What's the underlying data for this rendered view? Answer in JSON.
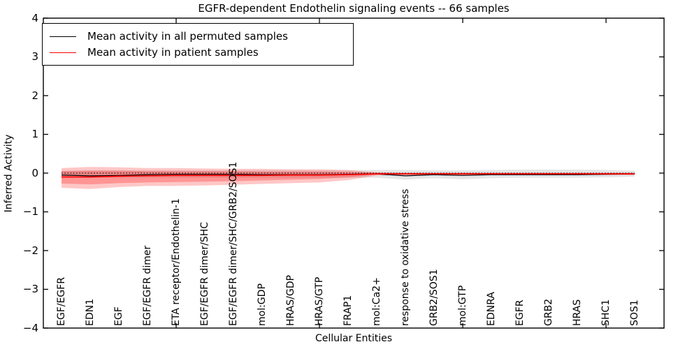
{
  "title": "EGFR-dependent Endothelin signaling events -- 66 samples",
  "axes": {
    "x_label": "Cellular Entities",
    "y_label": "Inferred Activity",
    "y_tick_labels": [
      "4",
      "3",
      "2",
      "1",
      "0",
      "−1",
      "−2",
      "−3",
      "−4"
    ]
  },
  "legend": {
    "items": [
      {
        "label": "Mean activity in all permuted samples",
        "color": "#000000"
      },
      {
        "label": "Mean activity in patient samples",
        "color": "#ff0000"
      }
    ],
    "position": "upper left"
  },
  "chart_data": {
    "type": "line",
    "title": "EGFR-dependent Endothelin signaling events -- 66 samples",
    "xlabel": "Cellular Entities",
    "ylabel": "Inferred Activity",
    "ylim": [
      -4,
      4
    ],
    "grid": false,
    "legend_position": "upper left",
    "categories": [
      "EGF/EGFR",
      "EDN1",
      "EGF",
      "EGF/EGFR dimer",
      "ETA receptor/Endothelin-1",
      "EGF/EGFR dimer/SHC",
      "EGF/EGFR dimer/SHC/GRB2/SOS1",
      "mol:GDP",
      "HRAS/GDP",
      "HRAS/GTP",
      "FRAP1",
      "mol:Ca2+",
      "response to oxidative stress",
      "GRB2/SOS1",
      "mol:GTP",
      "EDNRA",
      "EGFR",
      "GRB2",
      "HRAS",
      "SHC1",
      "SOS1"
    ],
    "x_tick_index": [
      4,
      9,
      14,
      19
    ],
    "y_ticks": [
      4,
      3,
      2,
      1,
      0,
      -1,
      -2,
      -3,
      -4
    ],
    "zero_line": {
      "y": 0,
      "style": "dotted",
      "color": "#000000"
    },
    "series": [
      {
        "name": "Mean activity in all permuted samples",
        "color": "#000000",
        "width": 1.2,
        "values": [
          -0.05,
          -0.07,
          -0.06,
          -0.04,
          -0.03,
          -0.03,
          -0.03,
          -0.04,
          -0.04,
          -0.04,
          -0.03,
          -0.02,
          -0.07,
          -0.04,
          -0.06,
          -0.04,
          -0.04,
          -0.04,
          -0.04,
          -0.03,
          -0.02
        ]
      },
      {
        "name": "Mean activity in patient samples",
        "color": "#ff0000",
        "width": 1.6,
        "values": [
          -0.1,
          -0.1,
          -0.08,
          -0.07,
          -0.06,
          -0.06,
          -0.06,
          -0.06,
          -0.05,
          -0.05,
          -0.04,
          -0.02,
          -0.02,
          -0.02,
          -0.02,
          -0.02,
          -0.02,
          -0.02,
          -0.02,
          -0.02,
          -0.02
        ]
      }
    ],
    "bands": [
      {
        "name": "permuted-sample-range",
        "color": "#000000",
        "opacity": 0.1,
        "upper": [
          0.06,
          0.07,
          0.07,
          0.07,
          0.07,
          0.07,
          0.07,
          0.07,
          0.07,
          0.07,
          0.07,
          0.08,
          0.08,
          0.07,
          0.07,
          0.08,
          0.09,
          0.09,
          0.09,
          0.08,
          0.06
        ],
        "lower": [
          -0.1,
          -0.12,
          -0.12,
          -0.12,
          -0.12,
          -0.12,
          -0.12,
          -0.12,
          -0.12,
          -0.12,
          -0.12,
          -0.12,
          -0.17,
          -0.13,
          -0.16,
          -0.13,
          -0.12,
          -0.12,
          -0.12,
          -0.11,
          -0.09
        ]
      },
      {
        "name": "patient-sample-range-outer",
        "color": "#ff0000",
        "opacity": 0.22,
        "upper": [
          0.13,
          0.16,
          0.15,
          0.13,
          0.13,
          0.12,
          0.11,
          0.11,
          0.1,
          0.1,
          0.08,
          0.02,
          0.01,
          0.01,
          0.01,
          0.01,
          0.01,
          0.01,
          0.01,
          0.01,
          0.01
        ],
        "lower": [
          -0.38,
          -0.41,
          -0.36,
          -0.33,
          -0.33,
          -0.32,
          -0.3,
          -0.28,
          -0.26,
          -0.24,
          -0.18,
          -0.06,
          -0.05,
          -0.05,
          -0.05,
          -0.05,
          -0.05,
          -0.05,
          -0.05,
          -0.05,
          -0.05
        ]
      },
      {
        "name": "patient-sample-range-inner",
        "color": "#ff0000",
        "opacity": 0.25,
        "upper": [
          0.05,
          0.06,
          0.06,
          0.05,
          0.05,
          0.05,
          0.05,
          0.04,
          0.04,
          0.04,
          0.03,
          0.01,
          0.0,
          0.0,
          0.0,
          0.0,
          0.0,
          0.0,
          0.0,
          0.0,
          0.0
        ],
        "lower": [
          -0.27,
          -0.29,
          -0.26,
          -0.24,
          -0.23,
          -0.22,
          -0.21,
          -0.19,
          -0.17,
          -0.15,
          -0.11,
          -0.04,
          -0.04,
          -0.04,
          -0.04,
          -0.04,
          -0.04,
          -0.04,
          -0.04,
          -0.04,
          -0.04
        ]
      }
    ]
  }
}
